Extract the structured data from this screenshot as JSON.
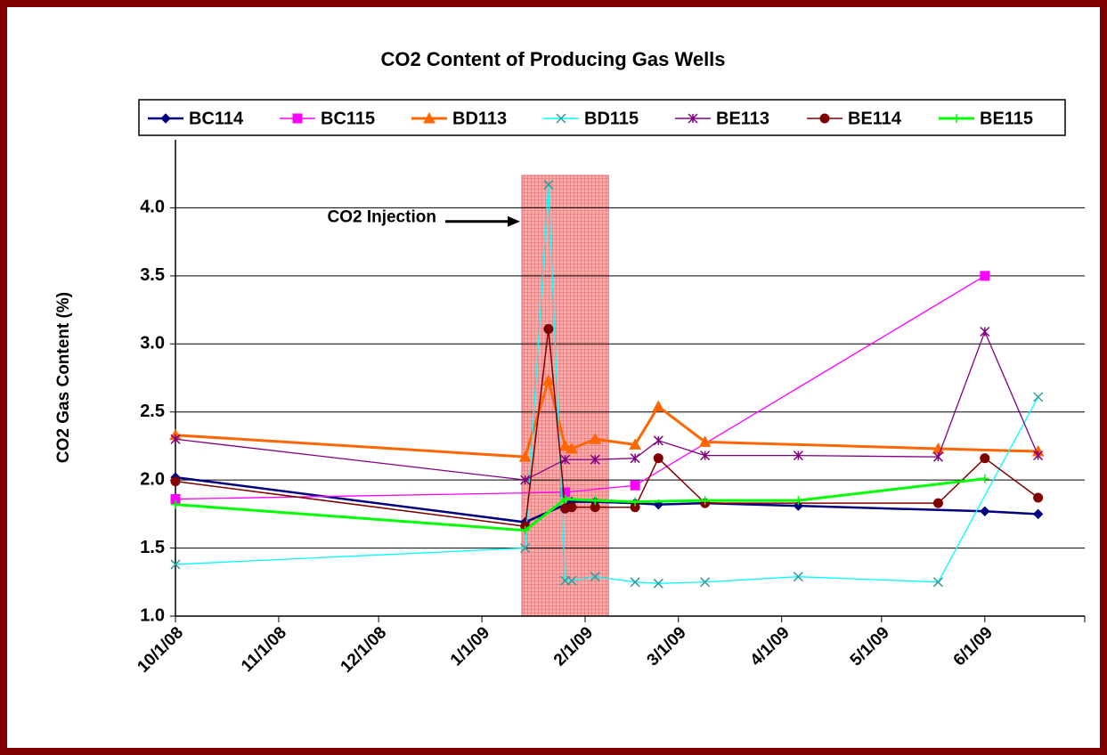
{
  "chart_data": {
    "type": "line",
    "title": "CO2 Content of Producing Gas Wells",
    "y_label": "CO2 Gas Content (%)",
    "annotation": "CO2 Injection",
    "injection_band": [
      "2009-01-13",
      "2009-02-08"
    ],
    "xlim": [
      "2008-10-01",
      "2009-07-01"
    ],
    "xticks": [
      {
        "value": "2008-10-01",
        "label": "10/1/08"
      },
      {
        "value": "2008-11-01",
        "label": "11/1/08"
      },
      {
        "value": "2008-12-01",
        "label": "12/1/08"
      },
      {
        "value": "2009-01-01",
        "label": "1/1/09"
      },
      {
        "value": "2009-02-01",
        "label": "2/1/09"
      },
      {
        "value": "2009-03-01",
        "label": "3/1/09"
      },
      {
        "value": "2009-04-01",
        "label": "4/1/09"
      },
      {
        "value": "2009-05-01",
        "label": "5/1/09"
      },
      {
        "value": "2009-06-01",
        "label": "6/1/09"
      },
      {
        "value": "2009-07-01",
        "label": ""
      }
    ],
    "ylim": [
      1.0,
      4.5
    ],
    "yticks": [
      {
        "value": 1.0,
        "label": "1.0"
      },
      {
        "value": 1.5,
        "label": "1.5"
      },
      {
        "value": 2.0,
        "label": "2.0"
      },
      {
        "value": 2.5,
        "label": "2.5"
      },
      {
        "value": 3.0,
        "label": "3.0"
      },
      {
        "value": 3.5,
        "label": "3.5"
      },
      {
        "value": 4.0,
        "label": "4.0"
      }
    ],
    "grid": true,
    "series": [
      {
        "name": "BC114",
        "color": "#000080",
        "marker": "diamond",
        "x": [
          "2008-10-01",
          "2009-01-14",
          "2009-01-28",
          "2009-02-04",
          "2009-02-16",
          "2009-02-23",
          "2009-03-09",
          "2009-04-06",
          "2009-06-01",
          "2009-06-17"
        ],
        "values": [
          2.02,
          1.69,
          1.84,
          1.84,
          1.83,
          1.82,
          1.83,
          1.81,
          1.77,
          1.75
        ]
      },
      {
        "name": "BC115",
        "color": "#FF00FF",
        "marker": "square",
        "x": [
          "2008-10-01",
          "2009-01-26",
          "2009-02-16",
          "2009-06-01"
        ],
        "values": [
          1.86,
          1.91,
          1.96,
          3.5
        ]
      },
      {
        "name": "BD113",
        "color": "#FF6600",
        "marker": "triangle",
        "x": [
          "2008-10-01",
          "2009-01-14",
          "2009-01-21",
          "2009-01-26",
          "2009-01-28",
          "2009-02-04",
          "2009-02-16",
          "2009-02-23",
          "2009-03-09",
          "2009-05-18",
          "2009-06-17"
        ],
        "values": [
          2.33,
          2.17,
          2.73,
          2.25,
          2.23,
          2.3,
          2.26,
          2.54,
          2.28,
          2.23,
          2.21
        ]
      },
      {
        "name": "BD115",
        "color": "#00FFFF",
        "marker": "x",
        "x": [
          "2008-10-01",
          "2009-01-14",
          "2009-01-21",
          "2009-01-26",
          "2009-01-28",
          "2009-02-04",
          "2009-02-16",
          "2009-02-23",
          "2009-03-09",
          "2009-04-06",
          "2009-05-18",
          "2009-06-17"
        ],
        "values": [
          1.38,
          1.5,
          4.17,
          1.26,
          1.26,
          1.29,
          1.25,
          1.24,
          1.25,
          1.29,
          1.25,
          2.61
        ]
      },
      {
        "name": "BE113",
        "color": "#800080",
        "marker": "star",
        "x": [
          "2008-10-01",
          "2009-01-14",
          "2009-01-26",
          "2009-02-04",
          "2009-02-16",
          "2009-02-23",
          "2009-03-09",
          "2009-04-06",
          "2009-05-18",
          "2009-06-01",
          "2009-06-17"
        ],
        "values": [
          2.3,
          2.0,
          2.15,
          2.15,
          2.16,
          2.29,
          2.18,
          2.18,
          2.17,
          3.09,
          2.18
        ]
      },
      {
        "name": "BE114",
        "color": "#800000",
        "marker": "circle",
        "x": [
          "2008-10-01",
          "2009-01-14",
          "2009-01-21",
          "2009-01-26",
          "2009-01-28",
          "2009-02-04",
          "2009-02-16",
          "2009-02-23",
          "2009-03-09",
          "2009-05-18",
          "2009-06-01",
          "2009-06-17"
        ],
        "values": [
          1.99,
          1.66,
          3.11,
          1.79,
          1.8,
          1.8,
          1.8,
          2.16,
          1.83,
          1.83,
          2.16,
          1.87
        ]
      },
      {
        "name": "BE115",
        "color": "#00FF00",
        "marker": "plus",
        "x": [
          "2008-10-01",
          "2009-01-14",
          "2009-01-26",
          "2009-02-04",
          "2009-02-16",
          "2009-03-09",
          "2009-04-06",
          "2009-06-01"
        ],
        "values": [
          1.82,
          1.63,
          1.86,
          1.85,
          1.84,
          1.85,
          1.85,
          2.01
        ]
      }
    ]
  }
}
